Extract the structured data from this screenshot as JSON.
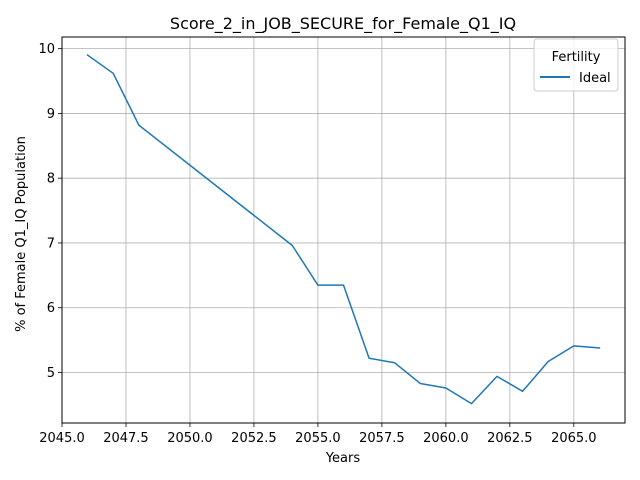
{
  "chart_data": {
    "type": "line",
    "title": "Score_2_in_JOB_SECURE_for_Female_Q1_IQ",
    "xlabel": "Years",
    "ylabel": "% of Female Q1_IQ Population",
    "xlim": [
      2045.0,
      2067.0
    ],
    "ylim": [
      4.22,
      10.18
    ],
    "xticks": [
      2045.0,
      2047.5,
      2050.0,
      2052.5,
      2055.0,
      2057.5,
      2060.0,
      2062.5,
      2065.0
    ],
    "xtick_labels": [
      "2045.0",
      "2047.5",
      "2050.0",
      "2052.5",
      "2055.0",
      "2057.5",
      "2060.0",
      "2062.5",
      "2065.0"
    ],
    "yticks": [
      5,
      6,
      7,
      8,
      9,
      10
    ],
    "ytick_labels": [
      "5",
      "6",
      "7",
      "8",
      "9",
      "10"
    ],
    "grid": true,
    "legend": {
      "title": "Fertility",
      "placement": "top-right"
    },
    "series": [
      {
        "name": "Ideal",
        "color": "#1f77b4",
        "x": [
          2046,
          2047,
          2048,
          2054,
          2055,
          2056,
          2057,
          2058,
          2059,
          2060,
          2061,
          2062,
          2063,
          2064,
          2065,
          2066
        ],
        "y": [
          9.9,
          9.62,
          8.82,
          6.96,
          6.35,
          6.35,
          5.22,
          5.15,
          4.83,
          4.76,
          4.52,
          4.94,
          4.71,
          5.17,
          5.41,
          5.38
        ]
      }
    ]
  }
}
